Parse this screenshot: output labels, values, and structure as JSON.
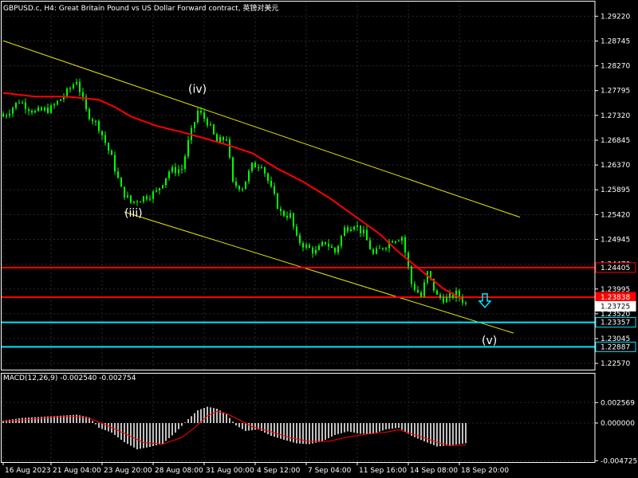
{
  "window": {
    "title": "GBPUSD.c, H4:  Great Britain Pound vs US Dollar Forward contract, 英镑对美元"
  },
  "colors": {
    "background": "#000000",
    "grid": "#2a2a2a",
    "candle": "#00ff00",
    "moving_average": "#ff0000",
    "channel": "#e6e600",
    "resistance": "#ff0000",
    "support": "#00e5ff",
    "macd_hist": "#c0c0c0",
    "macd_signal": "#ff0000",
    "text": "#ffffff"
  },
  "chart_data": [
    {
      "type": "candlestick",
      "symbol": "GBPUSD.c",
      "timeframe": "H4",
      "ylim": [
        1.2245,
        1.295
      ],
      "y_ticks": [
        "1.29220",
        "1.28745",
        "1.28270",
        "1.27795",
        "1.27320",
        "1.26845",
        "1.26370",
        "1.25895",
        "1.25420",
        "1.24945",
        "1.24470",
        "1.23995",
        "1.23520",
        "1.23045",
        "1.22570"
      ],
      "y_tick_values": [
        1.2922,
        1.28745,
        1.2827,
        1.27795,
        1.2732,
        1.26845,
        1.2637,
        1.25895,
        1.2542,
        1.24945,
        1.2447,
        1.23995,
        1.2352,
        1.23045,
        1.2257
      ],
      "x_ticks": [
        "16 Aug 2023",
        "21 Aug 04:00",
        "23 Aug 20:00",
        "28 Aug 08:00",
        "31 Aug 00:00",
        "4 Sep 12:00",
        "7 Sep 04:00",
        "11 Sep 16:00",
        "14 Sep 08:00",
        "18 Sep 20:00"
      ],
      "x_tick_index": [
        0,
        15,
        31,
        47,
        63,
        79,
        95,
        111,
        127,
        143
      ],
      "candle_count": 146,
      "close_path": [
        [
          0,
          1.273
        ],
        [
          5,
          1.276
        ],
        [
          10,
          1.2738
        ],
        [
          15,
          1.2745
        ],
        [
          20,
          1.2776
        ],
        [
          23,
          1.28
        ],
        [
          26,
          1.274
        ],
        [
          30,
          1.271
        ],
        [
          34,
          1.265
        ],
        [
          37,
          1.259
        ],
        [
          40,
          1.2565
        ],
        [
          44,
          1.2575
        ],
        [
          48,
          1.2585
        ],
        [
          52,
          1.2625
        ],
        [
          56,
          1.263
        ],
        [
          58,
          1.268
        ],
        [
          61,
          1.274
        ],
        [
          64,
          1.272
        ],
        [
          67,
          1.268
        ],
        [
          70,
          1.269
        ],
        [
          72,
          1.26
        ],
        [
          75,
          1.2595
        ],
        [
          78,
          1.2635
        ],
        [
          81,
          1.264
        ],
        [
          84,
          1.259
        ],
        [
          87,
          1.2545
        ],
        [
          90,
          1.254
        ],
        [
          92,
          1.2495
        ],
        [
          95,
          1.248
        ],
        [
          98,
          1.247
        ],
        [
          101,
          1.249
        ],
        [
          104,
          1.247
        ],
        [
          107,
          1.2515
        ],
        [
          110,
          1.2525
        ],
        [
          113,
          1.2505
        ],
        [
          116,
          1.2465
        ],
        [
          119,
          1.248
        ],
        [
          122,
          1.2495
        ],
        [
          125,
          1.25
        ],
        [
          128,
          1.241
        ],
        [
          131,
          1.2385
        ],
        [
          133,
          1.243
        ],
        [
          136,
          1.2385
        ],
        [
          139,
          1.238
        ],
        [
          142,
          1.239
        ],
        [
          145,
          1.2372
        ]
      ],
      "moving_average": [
        [
          0,
          1.2775
        ],
        [
          10,
          1.2768
        ],
        [
          20,
          1.2768
        ],
        [
          30,
          1.2762
        ],
        [
          35,
          1.2748
        ],
        [
          40,
          1.273
        ],
        [
          48,
          1.2712
        ],
        [
          56,
          1.27
        ],
        [
          62,
          1.269
        ],
        [
          70,
          1.2676
        ],
        [
          78,
          1.266
        ],
        [
          86,
          1.263
        ],
        [
          94,
          1.2605
        ],
        [
          102,
          1.2575
        ],
        [
          110,
          1.254
        ],
        [
          118,
          1.2505
        ],
        [
          124,
          1.247
        ],
        [
          130,
          1.244
        ],
        [
          134,
          1.242
        ],
        [
          138,
          1.24
        ],
        [
          141,
          1.239
        ],
        [
          144,
          1.238
        ]
      ],
      "channel_upper": [
        [
          0,
          1.2875
        ],
        [
          162,
          1.2537
        ]
      ],
      "channel_lower": [
        [
          38,
          1.2547
        ],
        [
          160,
          1.2315
        ]
      ],
      "horizontal_levels": [
        {
          "label": "1.24405",
          "value": 1.24405,
          "color": "#ff0000"
        },
        {
          "label": "1.23838",
          "value": 1.23838,
          "color": "#ff0000"
        },
        {
          "label": "1.23357",
          "value": 1.23357,
          "color": "#00e5ff"
        },
        {
          "label": "1.22887",
          "value": 1.22887,
          "color": "#00e5ff"
        }
      ],
      "price_badges": [
        {
          "label": "1.24405",
          "value": 1.24405,
          "style": "white-on-red-outline"
        },
        {
          "label": "1.23838",
          "value": 1.23838,
          "style": "red-fill"
        },
        {
          "label": "1.23725",
          "value": 1.23725,
          "style": "white-fill"
        },
        {
          "label": "1.23357",
          "value": 1.23357,
          "style": "cyan-outline"
        },
        {
          "label": "1.22887",
          "value": 1.22887,
          "style": "cyan-outline"
        }
      ],
      "annotations": [
        {
          "text": "(iv)",
          "index": 61,
          "value": 1.2775
        },
        {
          "text": "(iii)",
          "index": 41,
          "value": 1.2538
        },
        {
          "text": "(v)",
          "index": 153,
          "value": 1.2294
        }
      ],
      "arrow": {
        "direction": "down",
        "index": 151,
        "value": 1.2378,
        "color": "#00e5ff"
      }
    },
    {
      "type": "bar+line",
      "title": "MACD(12,26,9) -0.002540 -0.002754",
      "ylim": [
        -0.0049,
        0.0063
      ],
      "y_ticks": [
        "0.002569",
        "0.000000",
        "-0.004725"
      ],
      "y_tick_values": [
        0.002569,
        0.0,
        -0.004725
      ],
      "histogram": [
        [
          0,
          0.0003
        ],
        [
          6,
          0.00065
        ],
        [
          12,
          0.00078
        ],
        [
          18,
          0.00092
        ],
        [
          23,
          0.00105
        ],
        [
          27,
          0.0007
        ],
        [
          30,
          -0.0006
        ],
        [
          34,
          -0.0012
        ],
        [
          38,
          -0.0024
        ],
        [
          42,
          -0.0033
        ],
        [
          46,
          -0.003
        ],
        [
          50,
          -0.0026
        ],
        [
          54,
          -0.0012
        ],
        [
          58,
          0.0005
        ],
        [
          61,
          0.0016
        ],
        [
          64,
          0.00205
        ],
        [
          67,
          0.0018
        ],
        [
          70,
          0.0011
        ],
        [
          73,
          -0.0003
        ],
        [
          76,
          -0.001
        ],
        [
          80,
          -0.0008
        ],
        [
          84,
          -0.0016
        ],
        [
          88,
          -0.0021
        ],
        [
          92,
          -0.00255
        ],
        [
          96,
          -0.00265
        ],
        [
          100,
          -0.0023
        ],
        [
          104,
          -0.0015
        ],
        [
          108,
          -0.00105
        ],
        [
          112,
          -0.00135
        ],
        [
          116,
          -0.00135
        ],
        [
          120,
          -0.0008
        ],
        [
          124,
          -0.0006
        ],
        [
          128,
          -0.0016
        ],
        [
          132,
          -0.0023
        ],
        [
          136,
          -0.00295
        ],
        [
          140,
          -0.0028
        ],
        [
          145,
          -0.00254
        ]
      ],
      "signal": [
        [
          0,
          0.0002
        ],
        [
          8,
          0.00045
        ],
        [
          16,
          0.00075
        ],
        [
          22,
          0.00085
        ],
        [
          27,
          0.0006
        ],
        [
          32,
          -0.0002
        ],
        [
          38,
          -0.0013
        ],
        [
          44,
          -0.00245
        ],
        [
          50,
          -0.00265
        ],
        [
          56,
          -0.0018
        ],
        [
          60,
          -0.0006
        ],
        [
          64,
          0.0009
        ],
        [
          67,
          0.00145
        ],
        [
          70,
          0.0012
        ],
        [
          74,
          0.0004
        ],
        [
          78,
          -0.00045
        ],
        [
          84,
          -0.0011
        ],
        [
          90,
          -0.00185
        ],
        [
          96,
          -0.0023
        ],
        [
          102,
          -0.0023
        ],
        [
          108,
          -0.00175
        ],
        [
          114,
          -0.0014
        ],
        [
          120,
          -0.00115
        ],
        [
          124,
          -0.00085
        ],
        [
          130,
          -0.0016
        ],
        [
          136,
          -0.0024
        ],
        [
          140,
          -0.00285
        ],
        [
          145,
          -0.00275
        ]
      ]
    }
  ]
}
